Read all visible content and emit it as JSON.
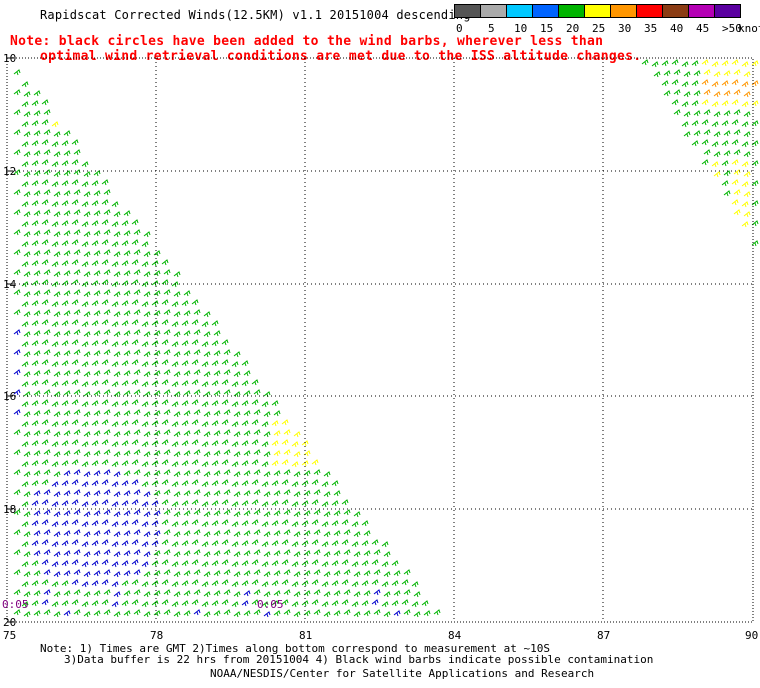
{
  "header": {
    "title": "Rapidscat Corrected Winds(12.5KM) v1.1 20151004 descending",
    "note_line1": "Note: black circles have been added to the wind barbs, wherever less than",
    "note_line2": "optimal wind retrieval conditions are met due to the ISS altitude changes."
  },
  "legend": {
    "unit": "knots",
    "labels": [
      "0",
      "5",
      "10",
      "15",
      "20",
      "25",
      "30",
      "35",
      "40",
      "45",
      ">50"
    ],
    "colors": [
      "#555555",
      "#aaaaaa",
      "#00c8ff",
      "#0064ff",
      "#00b400",
      "#ffff00",
      "#ff9600",
      "#ff0000",
      "#8b3c14",
      "#b400b4",
      "#5a00a0"
    ]
  },
  "map": {
    "lat_labels": [
      "10",
      "12",
      "14",
      "16",
      "18",
      "20"
    ],
    "lon_labels": [
      "75",
      "78",
      "81",
      "84",
      "87",
      "90"
    ],
    "time_labels": [
      "0:05",
      "0:05"
    ],
    "barb_colors": {
      "green": "#00b400",
      "blue": "#0000cc",
      "yellow": "#ffff00",
      "orange": "#ff9600"
    }
  },
  "footer": {
    "line1": "Note: 1) Times are GMT 2)Times along bottom correspond to measurement at ~10S",
    "line2": "3)Data buffer is 22 hrs from 20151004 4) Black wind barbs indicate possible contamination",
    "line3": "NOAA/NESDIS/Center for Satellite Applications and Research"
  }
}
